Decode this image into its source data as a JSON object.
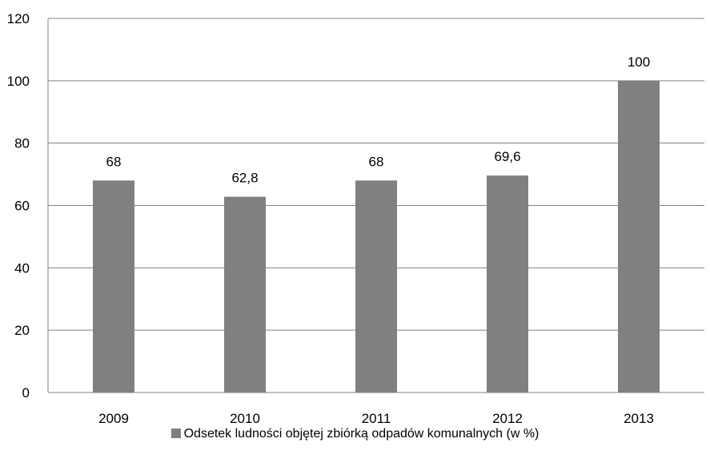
{
  "chart_data": {
    "type": "bar",
    "categories": [
      "2009",
      "2010",
      "2011",
      "2012",
      "2013"
    ],
    "series": [
      {
        "name": "Odsetek ludności objętej zbiórką odpadów komunalnych (w %)",
        "values": [
          68,
          62.8,
          68,
          69.6,
          100
        ],
        "value_labels": [
          "68",
          "62,8",
          "68",
          "69,6",
          "100"
        ]
      }
    ],
    "yticks": [
      "0",
      "20",
      "40",
      "60",
      "80",
      "100",
      "120"
    ],
    "ylim": [
      0,
      120
    ],
    "grid": true,
    "legend": "bottom-center",
    "bar_color": "#808080",
    "grid_color": "#808080"
  }
}
